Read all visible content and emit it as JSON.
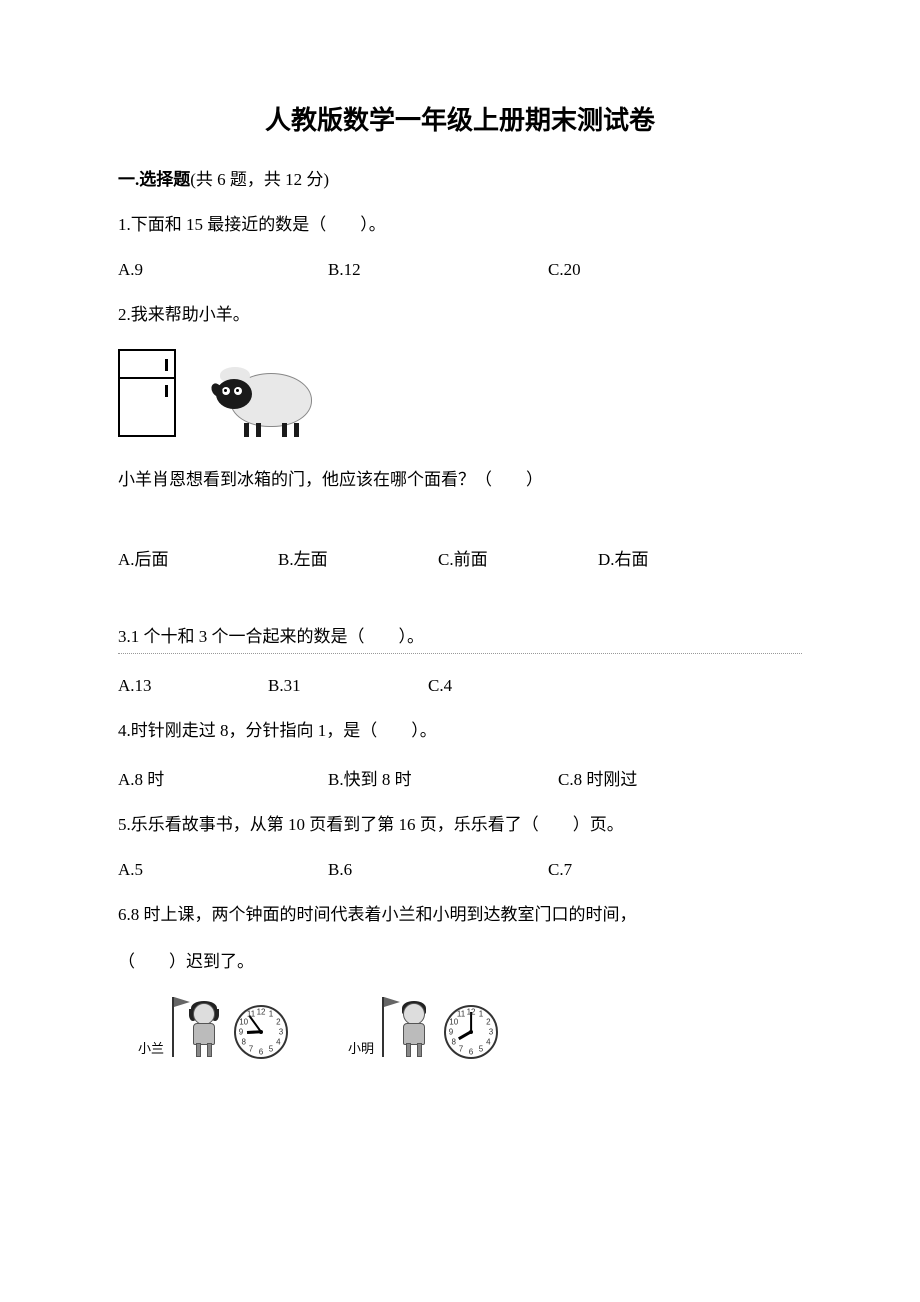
{
  "title": "人教版数学一年级上册期末测试卷",
  "section1": {
    "label_bold": "一.选择题",
    "label_rest": "(共 6 题，共 12 分)"
  },
  "q1": {
    "text": "1.下面和 15 最接近的数是（　　）。",
    "a": "A.9",
    "b": "B.12",
    "c": "C.20"
  },
  "q2": {
    "text": "2.我来帮助小羊。",
    "sub": "小羊肖恩想看到冰箱的门，他应该在哪个面看？（　　）",
    "a": "A.后面",
    "b": "B.左面",
    "c": "C.前面",
    "d": "D.右面"
  },
  "q3": {
    "text": "3.1 个十和 3 个一合起来的数是（　　）。",
    "a": "A.13",
    "b": "B.31",
    "c": "C.4"
  },
  "q4": {
    "text": "4.时针刚走过 8，分针指向 1，是（　　）。",
    "a": "A.8 时",
    "b": "B.快到 8 时",
    "c": "C.8 时刚过"
  },
  "q5": {
    "text": "5.乐乐看故事书，从第 10 页看到了第 16 页，乐乐看了（　　）页。",
    "a": "A.5",
    "b": "B.6",
    "c": "C.7"
  },
  "q6": {
    "text1": "6.8 时上课，两个钟面的时间代表着小兰和小明到达教室门口的时间，",
    "text2": "（　　）迟到了。",
    "label_lan": "小兰",
    "label_ming": "小明",
    "clock_lan": {
      "hour_deg": 267,
      "minute_deg": 324
    },
    "clock_ming": {
      "hour_deg": 240,
      "minute_deg": 0
    }
  },
  "colors": {
    "text": "#000000",
    "background": "#ffffff",
    "dotted": "#999999"
  }
}
